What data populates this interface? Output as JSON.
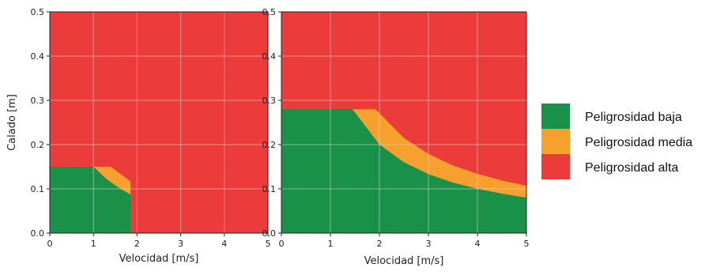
{
  "colors": {
    "low": "#1a9148",
    "medium": "#f6a02e",
    "high": "#eb3b3b",
    "grid": "#dcdcdc"
  },
  "legend": {
    "items": [
      {
        "label": "Peligrosidad baja",
        "color": "#1a9148"
      },
      {
        "label": "Peligrosidad media",
        "color": "#f6a02e"
      },
      {
        "label": "Peligrosidad alta",
        "color": "#eb3b3b"
      }
    ]
  },
  "chart_data": [
    {
      "type": "area",
      "xlabel": "Velocidad [m/s]",
      "ylabel": "Calado [m]",
      "xlim": [
        0,
        5
      ],
      "ylim": [
        0,
        0.5
      ],
      "xticks": [
        "0",
        "1",
        "2",
        "3",
        "4",
        "5"
      ],
      "yticks": [
        "0.0",
        "0.1",
        "0.2",
        "0.3",
        "0.4",
        "0.5"
      ],
      "grid": true,
      "background_zone": "Peligrosidad alta",
      "series": [
        {
          "name": "Peligrosidad baja",
          "x": [
            0,
            1.0,
            1.3,
            1.6,
            1.85,
            1.85
          ],
          "y": [
            0.15,
            0.15,
            0.122,
            0.101,
            0.087,
            0
          ]
        },
        {
          "name": "Peligrosidad media",
          "x": [
            1.0,
            1.4,
            1.6,
            1.85,
            1.85
          ],
          "y": [
            0.15,
            0.15,
            0.135,
            0.117,
            0.087
          ]
        }
      ]
    },
    {
      "type": "area",
      "xlabel": "Velocidad [m/s]",
      "ylabel": "",
      "xlim": [
        0,
        5
      ],
      "ylim": [
        0,
        0.5
      ],
      "xticks": [
        "0",
        "1",
        "2",
        "3",
        "4",
        "5"
      ],
      "yticks": [
        "0.0",
        "0.1",
        "0.2",
        "0.3",
        "0.4",
        "0.5"
      ],
      "grid": true,
      "background_zone": "Peligrosidad alta",
      "series": [
        {
          "name": "Peligrosidad baja",
          "x": [
            0,
            1.45,
            2.0,
            2.5,
            3.0,
            3.5,
            4.0,
            4.5,
            5.0
          ],
          "y": [
            0.28,
            0.28,
            0.2,
            0.16,
            0.133,
            0.114,
            0.1,
            0.089,
            0.08
          ]
        },
        {
          "name": "Peligrosidad media",
          "x": [
            1.45,
            1.92,
            2.5,
            3.0,
            3.5,
            4.0,
            4.5,
            5.0
          ],
          "y": [
            0.28,
            0.28,
            0.215,
            0.179,
            0.153,
            0.134,
            0.119,
            0.107
          ]
        }
      ]
    }
  ]
}
